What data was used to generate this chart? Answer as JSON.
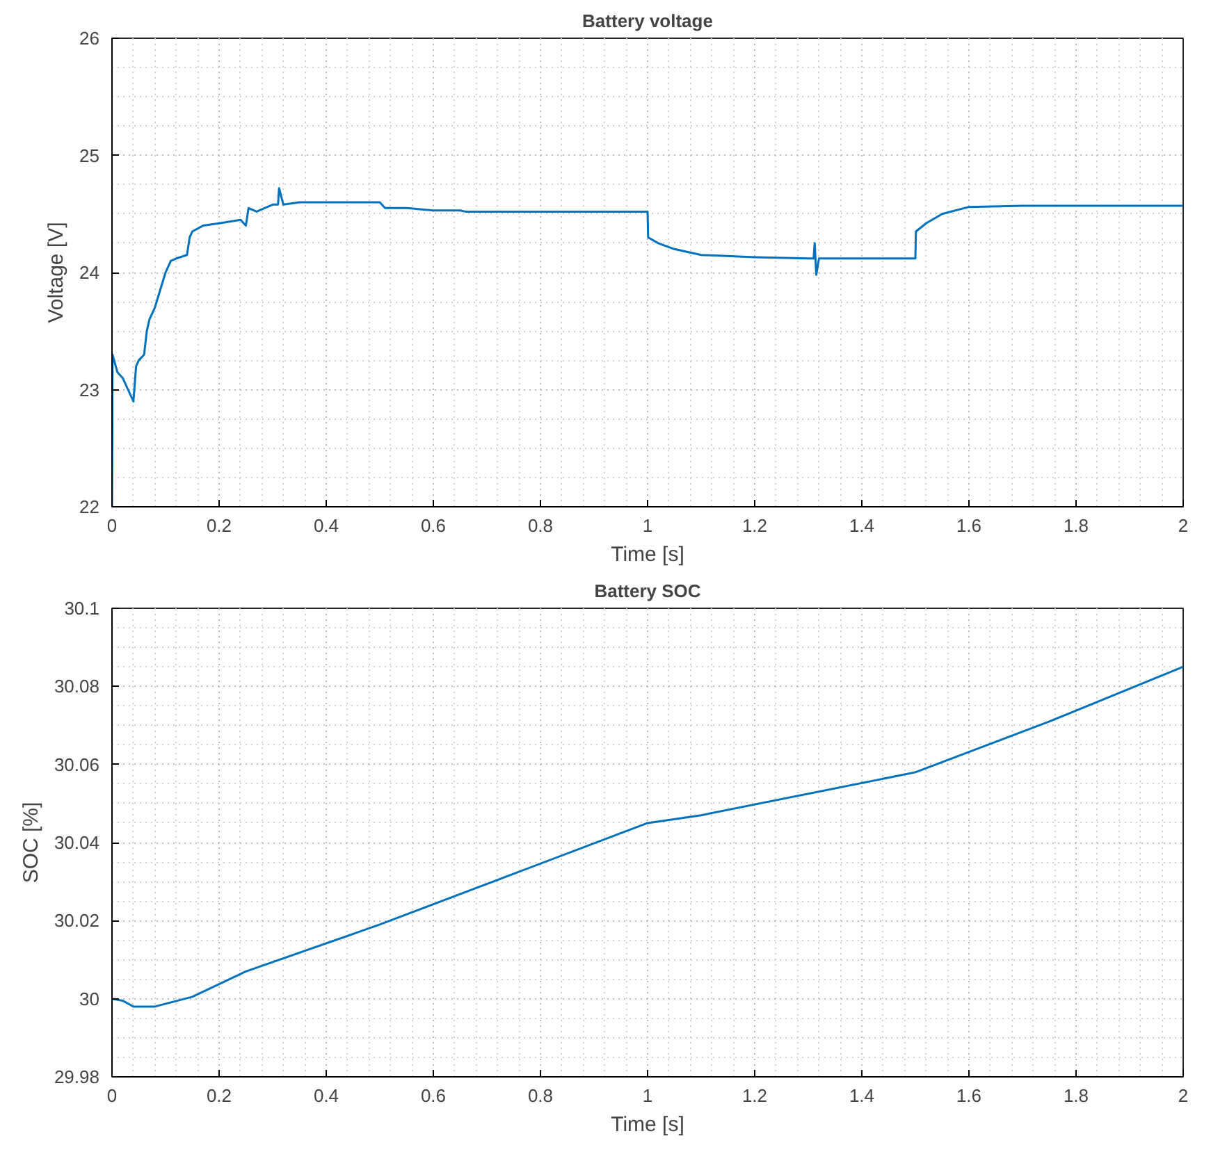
{
  "chart_data": [
    {
      "type": "line",
      "title": "Battery voltage",
      "xlabel": "Time [s]",
      "ylabel": "Voltage [V]",
      "x": [
        0,
        0.001,
        0.01,
        0.02,
        0.03,
        0.04,
        0.045,
        0.05,
        0.06,
        0.065,
        0.07,
        0.08,
        0.09,
        0.1,
        0.11,
        0.12,
        0.14,
        0.145,
        0.15,
        0.17,
        0.2,
        0.24,
        0.25,
        0.255,
        0.27,
        0.3,
        0.31,
        0.312,
        0.32,
        0.35,
        0.4,
        0.5,
        0.51,
        0.55,
        0.6,
        0.65,
        0.66,
        0.8,
        1.0,
        1.001,
        1.02,
        1.05,
        1.1,
        1.2,
        1.3,
        1.31,
        1.312,
        1.315,
        1.32,
        1.4,
        1.5,
        1.501,
        1.52,
        1.55,
        1.6,
        1.7,
        1.8,
        2.0
      ],
      "series": [
        {
          "color": "#0072bd",
          "values": [
            22.0,
            23.3,
            23.15,
            23.1,
            23.0,
            22.9,
            23.2,
            23.25,
            23.3,
            23.5,
            23.6,
            23.7,
            23.85,
            24.0,
            24.1,
            24.12,
            24.15,
            24.3,
            24.35,
            24.4,
            24.42,
            24.45,
            24.4,
            24.55,
            24.52,
            24.58,
            24.58,
            24.72,
            24.58,
            24.6,
            24.6,
            24.6,
            24.55,
            24.55,
            24.53,
            24.53,
            24.52,
            24.52,
            24.52,
            24.3,
            24.25,
            24.2,
            24.15,
            24.13,
            24.12,
            24.12,
            24.25,
            23.98,
            24.12,
            24.12,
            24.12,
            24.35,
            24.42,
            24.5,
            24.56,
            24.57,
            24.57,
            24.57
          ]
        }
      ],
      "xlim": [
        0,
        2
      ],
      "ylim": [
        22,
        26
      ],
      "xticks": [
        0,
        0.2,
        0.4,
        0.6,
        0.8,
        1,
        1.2,
        1.4,
        1.6,
        1.8,
        2
      ],
      "yticks": [
        22,
        23,
        24,
        25,
        26
      ],
      "grid": true
    },
    {
      "type": "line",
      "title": "Battery SOC",
      "xlabel": "Time [s]",
      "ylabel": "SOC [%]",
      "x": [
        0,
        0.02,
        0.04,
        0.08,
        0.15,
        0.25,
        0.5,
        0.75,
        1.0,
        1.1,
        1.5,
        1.75,
        2.0
      ],
      "series": [
        {
          "color": "#0072bd",
          "values": [
            30.0,
            29.9995,
            29.998,
            29.998,
            30.0005,
            30.007,
            30.019,
            30.032,
            30.045,
            30.047,
            30.058,
            30.071,
            30.085
          ]
        }
      ],
      "xlim": [
        0,
        2
      ],
      "ylim": [
        29.98,
        30.1
      ],
      "xticks": [
        0,
        0.2,
        0.4,
        0.6,
        0.8,
        1,
        1.2,
        1.4,
        1.6,
        1.8,
        2
      ],
      "yticks": [
        29.98,
        30,
        30.02,
        30.04,
        30.06,
        30.08,
        30.1
      ],
      "grid": true
    }
  ]
}
